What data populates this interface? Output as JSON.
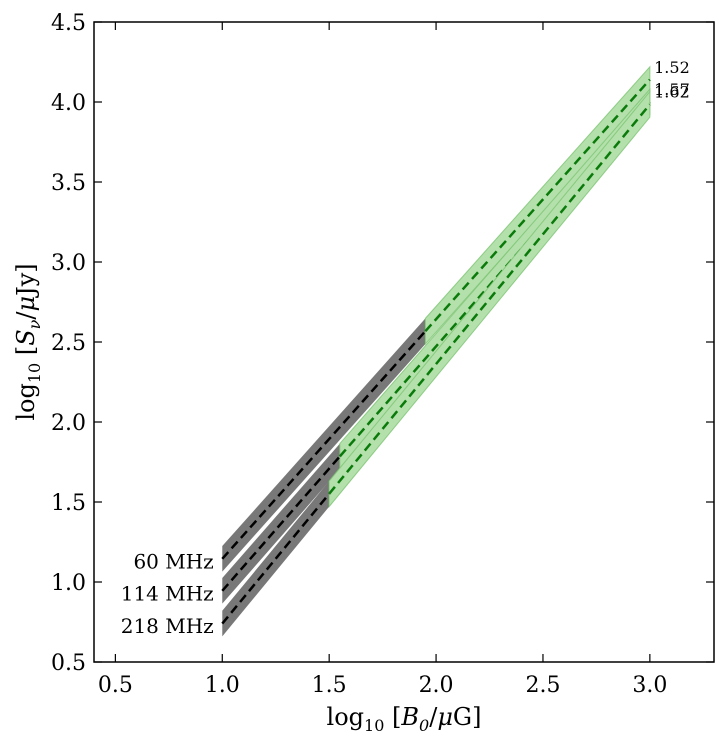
{
  "chart_data": {
    "type": "line",
    "title": "",
    "xlabel_parts": [
      "log",
      "10",
      " [",
      "B",
      "0",
      "/",
      "μ",
      "G]"
    ],
    "ylabel_parts": [
      "log",
      "10",
      " [",
      "S",
      "ν",
      "/",
      "μ",
      "Jy]"
    ],
    "xlim": [
      0.4,
      3.3
    ],
    "ylim": [
      0.5,
      4.5
    ],
    "xticks": [
      "0.5",
      "1.0",
      "1.5",
      "2.0",
      "2.5",
      "3.0"
    ],
    "yticks": [
      "0.5",
      "1.0",
      "1.5",
      "2.0",
      "2.5",
      "3.0",
      "3.5",
      "4.0",
      "4.5"
    ],
    "series": [
      {
        "name": "60 MHz",
        "index_label": "1.52",
        "black_range": [
          1.0,
          1.95
        ],
        "green_range": [
          1.95,
          3.0
        ],
        "center_start": 1.145,
        "center_end": 4.14,
        "half_width": 0.08
      },
      {
        "name": "114 MHz",
        "index_label": "1.57",
        "black_range": [
          1.0,
          1.55
        ],
        "green_range": [
          1.55,
          3.0
        ],
        "center_start": 0.945,
        "center_end": 4.0,
        "half_width": 0.08
      },
      {
        "name": "218 MHz",
        "index_label": "1.62",
        "black_range": [
          1.0,
          1.5
        ],
        "green_range": [
          1.5,
          3.0
        ],
        "center_start": 0.74,
        "center_end": 3.985,
        "half_width": 0.08
      }
    ],
    "colors": {
      "black_band": "#787878",
      "black_line": "#000000",
      "green_band": "#b3e0ab",
      "green_band_edge": "#7cc472",
      "green_line": "#0a7a0a"
    }
  }
}
